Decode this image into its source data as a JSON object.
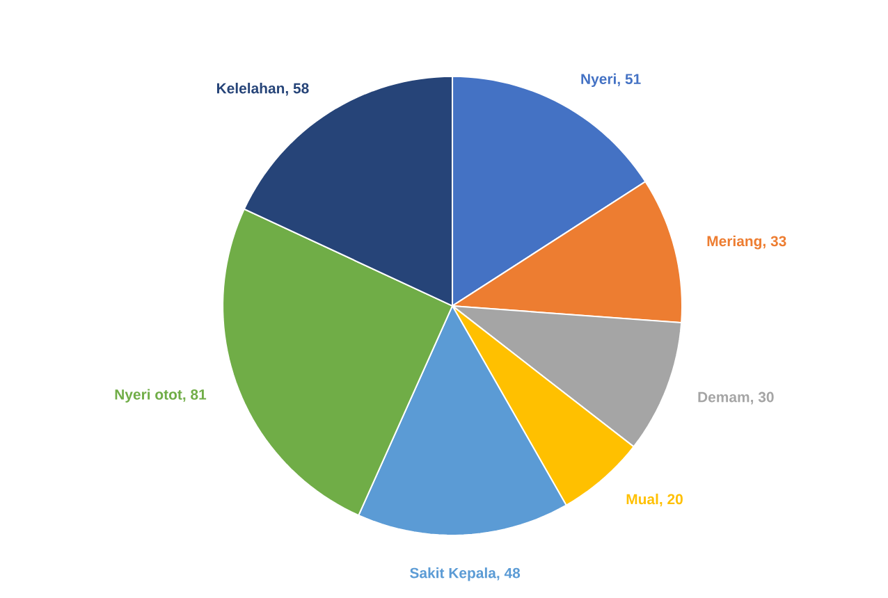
{
  "chart_data": {
    "type": "pie",
    "categories": [
      "Nyeri",
      "Meriang",
      "Demam",
      "Mual",
      "Sakit Kepala",
      "Nyeri otot",
      "Kelelahan"
    ],
    "values": [
      51,
      33,
      30,
      20,
      48,
      81,
      58
    ],
    "colors": [
      "#4472c4",
      "#ed7d31",
      "#a5a5a5",
      "#ffc000",
      "#5b9bd5",
      "#70ad47",
      "#264478"
    ],
    "value_labels": [
      ", 51",
      ", 33",
      ", 30",
      ", 20",
      ", 48",
      ", 81",
      ", 58"
    ]
  }
}
